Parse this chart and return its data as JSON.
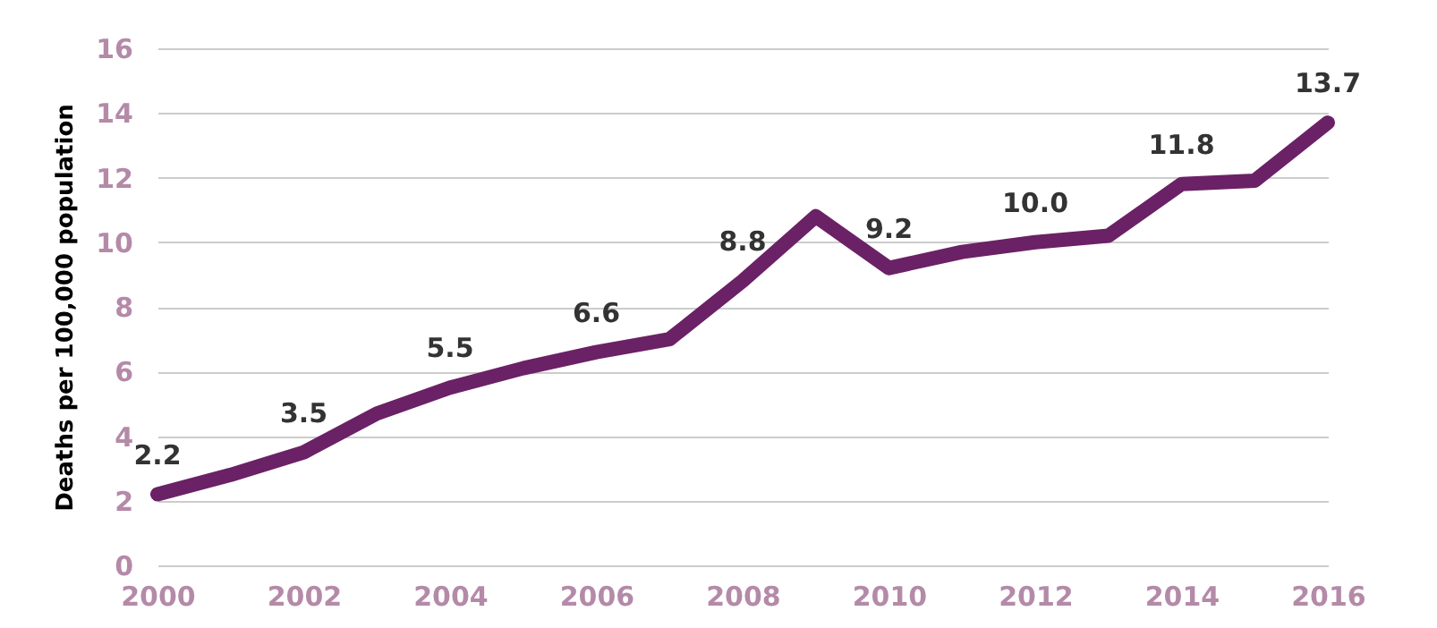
{
  "chart_data": {
    "type": "line",
    "ylabel": "Deaths per 100,000 population",
    "x": [
      2000,
      2001,
      2002,
      2003,
      2004,
      2005,
      2006,
      2007,
      2008,
      2009,
      2010,
      2011,
      2012,
      2013,
      2014,
      2015,
      2016
    ],
    "series": [
      {
        "color": "#6b2166",
        "values": [
          2.2,
          2.8,
          3.5,
          4.7,
          5.5,
          6.1,
          6.6,
          7.0,
          8.8,
          10.8,
          9.2,
          9.7,
          10.0,
          10.2,
          11.8,
          11.9,
          13.7
        ],
        "value_labels": [
          "2.2",
          null,
          "3.5",
          null,
          "5.5",
          null,
          "6.6",
          null,
          "8.8",
          null,
          "9.2",
          null,
          "10.0",
          null,
          "11.8",
          null,
          "13.7"
        ]
      }
    ],
    "xlim": [
      2000,
      2016
    ],
    "xticks": [
      2000,
      2002,
      2004,
      2006,
      2008,
      2010,
      2012,
      2014,
      2016
    ],
    "ylim": [
      0,
      16
    ],
    "yticks": [
      0,
      2,
      4,
      6,
      8,
      10,
      12,
      14,
      16
    ],
    "grid": "y",
    "marker": "none",
    "line_style": "solid"
  }
}
